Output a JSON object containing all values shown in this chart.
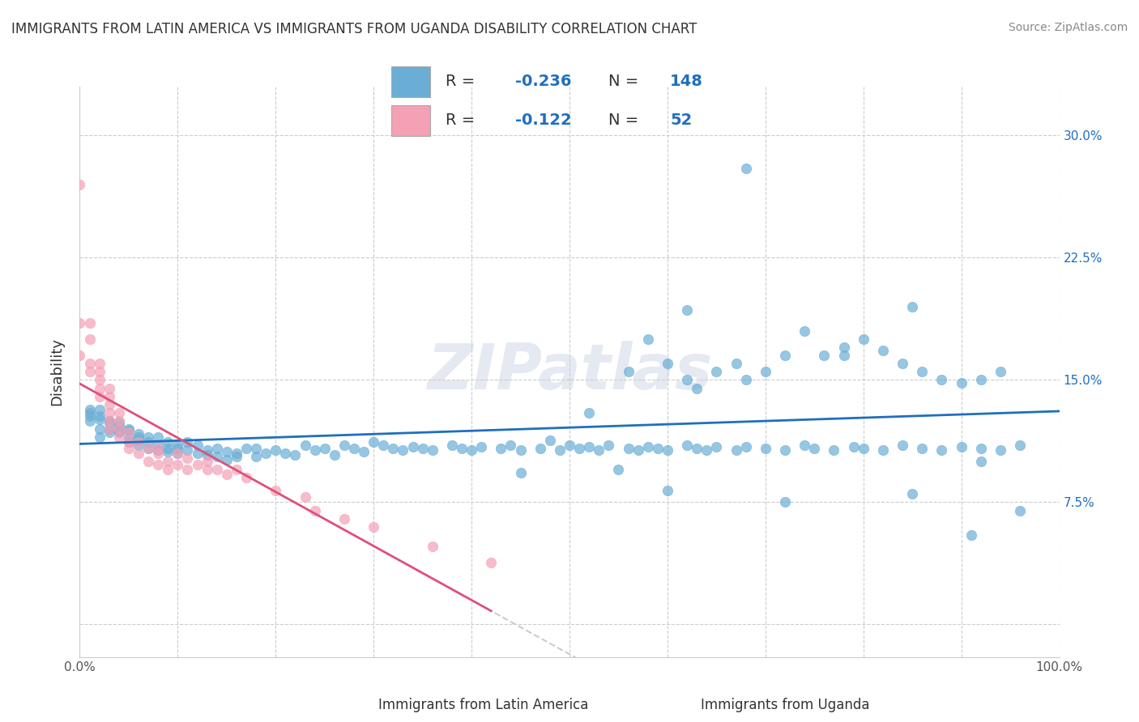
{
  "title": "IMMIGRANTS FROM LATIN AMERICA VS IMMIGRANTS FROM UGANDA DISABILITY CORRELATION CHART",
  "source": "Source: ZipAtlas.com",
  "ylabel": "Disability",
  "xlim": [
    0.0,
    1.0
  ],
  "ylim": [
    -0.02,
    0.33
  ],
  "yticks": [
    0.0,
    0.075,
    0.15,
    0.225,
    0.3
  ],
  "blue_R": -0.236,
  "blue_N": 148,
  "pink_R": -0.122,
  "pink_N": 52,
  "blue_color": "#6aaed6",
  "pink_color": "#f4a0b5",
  "blue_line_color": "#1f6fbf",
  "pink_line_color": "#e0507a",
  "watermark": "ZIPatlas",
  "legend_label_blue": "Immigrants from Latin America",
  "legend_label_pink": "Immigrants from Uganda",
  "blue_scatter_x": [
    0.01,
    0.01,
    0.01,
    0.01,
    0.02,
    0.02,
    0.02,
    0.02,
    0.02,
    0.03,
    0.03,
    0.03,
    0.03,
    0.04,
    0.04,
    0.04,
    0.04,
    0.05,
    0.05,
    0.05,
    0.05,
    0.06,
    0.06,
    0.06,
    0.06,
    0.07,
    0.07,
    0.07,
    0.08,
    0.08,
    0.08,
    0.09,
    0.09,
    0.09,
    0.1,
    0.1,
    0.1,
    0.11,
    0.11,
    0.12,
    0.12,
    0.13,
    0.13,
    0.14,
    0.14,
    0.15,
    0.15,
    0.16,
    0.16,
    0.17,
    0.18,
    0.18,
    0.19,
    0.2,
    0.21,
    0.22,
    0.23,
    0.24,
    0.25,
    0.26,
    0.27,
    0.28,
    0.29,
    0.3,
    0.31,
    0.32,
    0.33,
    0.34,
    0.35,
    0.36,
    0.38,
    0.39,
    0.4,
    0.41,
    0.43,
    0.44,
    0.45,
    0.47,
    0.49,
    0.5,
    0.51,
    0.52,
    0.53,
    0.54,
    0.56,
    0.57,
    0.58,
    0.59,
    0.6,
    0.62,
    0.63,
    0.64,
    0.65,
    0.67,
    0.68,
    0.7,
    0.72,
    0.74,
    0.75,
    0.77,
    0.79,
    0.8,
    0.82,
    0.84,
    0.86,
    0.88,
    0.9,
    0.92,
    0.94,
    0.96,
    0.52,
    0.56,
    0.58,
    0.6,
    0.62,
    0.63,
    0.65,
    0.67,
    0.68,
    0.7,
    0.72,
    0.74,
    0.76,
    0.78,
    0.8,
    0.82,
    0.84,
    0.86,
    0.88,
    0.9,
    0.92,
    0.94,
    0.45,
    0.62,
    0.68,
    0.78,
    0.85,
    0.92,
    0.96,
    0.48,
    0.55,
    0.6,
    0.72,
    0.85,
    0.91
  ],
  "blue_scatter_y": [
    0.132,
    0.128,
    0.125,
    0.13,
    0.126,
    0.128,
    0.132,
    0.12,
    0.115,
    0.124,
    0.12,
    0.125,
    0.118,
    0.122,
    0.118,
    0.124,
    0.119,
    0.12,
    0.115,
    0.112,
    0.119,
    0.113,
    0.11,
    0.117,
    0.115,
    0.112,
    0.108,
    0.115,
    0.11,
    0.107,
    0.115,
    0.108,
    0.112,
    0.106,
    0.105,
    0.11,
    0.108,
    0.107,
    0.112,
    0.105,
    0.11,
    0.107,
    0.104,
    0.108,
    0.103,
    0.106,
    0.101,
    0.105,
    0.103,
    0.108,
    0.103,
    0.108,
    0.105,
    0.107,
    0.105,
    0.104,
    0.11,
    0.107,
    0.108,
    0.104,
    0.11,
    0.108,
    0.106,
    0.112,
    0.11,
    0.108,
    0.107,
    0.109,
    0.108,
    0.107,
    0.11,
    0.108,
    0.107,
    0.109,
    0.108,
    0.11,
    0.107,
    0.108,
    0.107,
    0.11,
    0.108,
    0.109,
    0.107,
    0.11,
    0.108,
    0.107,
    0.109,
    0.108,
    0.107,
    0.11,
    0.108,
    0.107,
    0.109,
    0.107,
    0.109,
    0.108,
    0.107,
    0.11,
    0.108,
    0.107,
    0.109,
    0.108,
    0.107,
    0.11,
    0.108,
    0.107,
    0.109,
    0.108,
    0.107,
    0.11,
    0.13,
    0.155,
    0.175,
    0.16,
    0.15,
    0.145,
    0.155,
    0.16,
    0.15,
    0.155,
    0.165,
    0.18,
    0.165,
    0.17,
    0.175,
    0.168,
    0.16,
    0.155,
    0.15,
    0.148,
    0.15,
    0.155,
    0.093,
    0.193,
    0.28,
    0.165,
    0.195,
    0.1,
    0.07,
    0.113,
    0.095,
    0.082,
    0.075,
    0.08,
    0.055
  ],
  "pink_scatter_x": [
    0.0,
    0.0,
    0.0,
    0.01,
    0.01,
    0.01,
    0.01,
    0.02,
    0.02,
    0.02,
    0.02,
    0.02,
    0.03,
    0.03,
    0.03,
    0.03,
    0.03,
    0.03,
    0.04,
    0.04,
    0.04,
    0.04,
    0.05,
    0.05,
    0.05,
    0.06,
    0.06,
    0.07,
    0.07,
    0.08,
    0.08,
    0.08,
    0.09,
    0.09,
    0.1,
    0.1,
    0.11,
    0.11,
    0.12,
    0.13,
    0.13,
    0.14,
    0.15,
    0.16,
    0.17,
    0.2,
    0.23,
    0.24,
    0.27,
    0.3,
    0.36,
    0.42
  ],
  "pink_scatter_y": [
    0.27,
    0.185,
    0.165,
    0.175,
    0.155,
    0.16,
    0.185,
    0.155,
    0.14,
    0.15,
    0.145,
    0.16,
    0.14,
    0.13,
    0.12,
    0.125,
    0.135,
    0.145,
    0.12,
    0.115,
    0.125,
    0.13,
    0.112,
    0.118,
    0.108,
    0.112,
    0.105,
    0.108,
    0.1,
    0.105,
    0.098,
    0.108,
    0.1,
    0.095,
    0.098,
    0.105,
    0.095,
    0.102,
    0.098,
    0.095,
    0.1,
    0.095,
    0.092,
    0.095,
    0.09,
    0.082,
    0.078,
    0.07,
    0.065,
    0.06,
    0.048,
    0.038
  ]
}
